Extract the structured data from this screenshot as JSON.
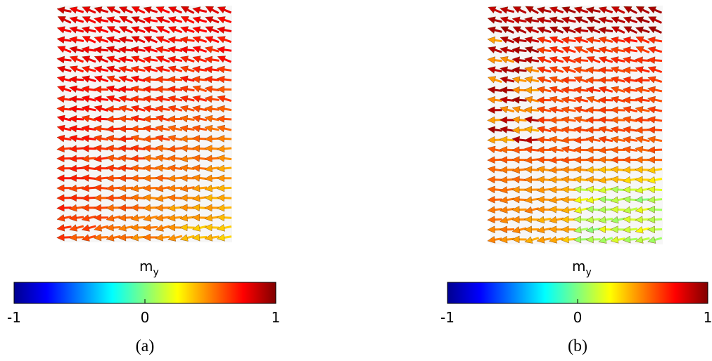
{
  "panels": [
    {
      "colorbar": {
        "label": "m",
        "label_sub": "y",
        "ticks": [
          -1,
          0,
          1
        ]
      },
      "caption": "(a)"
    },
    {
      "colorbar": {
        "label": "m",
        "label_sub": "y",
        "ticks": [
          -1,
          0,
          1
        ]
      },
      "caption": "(b)"
    }
  ]
}
